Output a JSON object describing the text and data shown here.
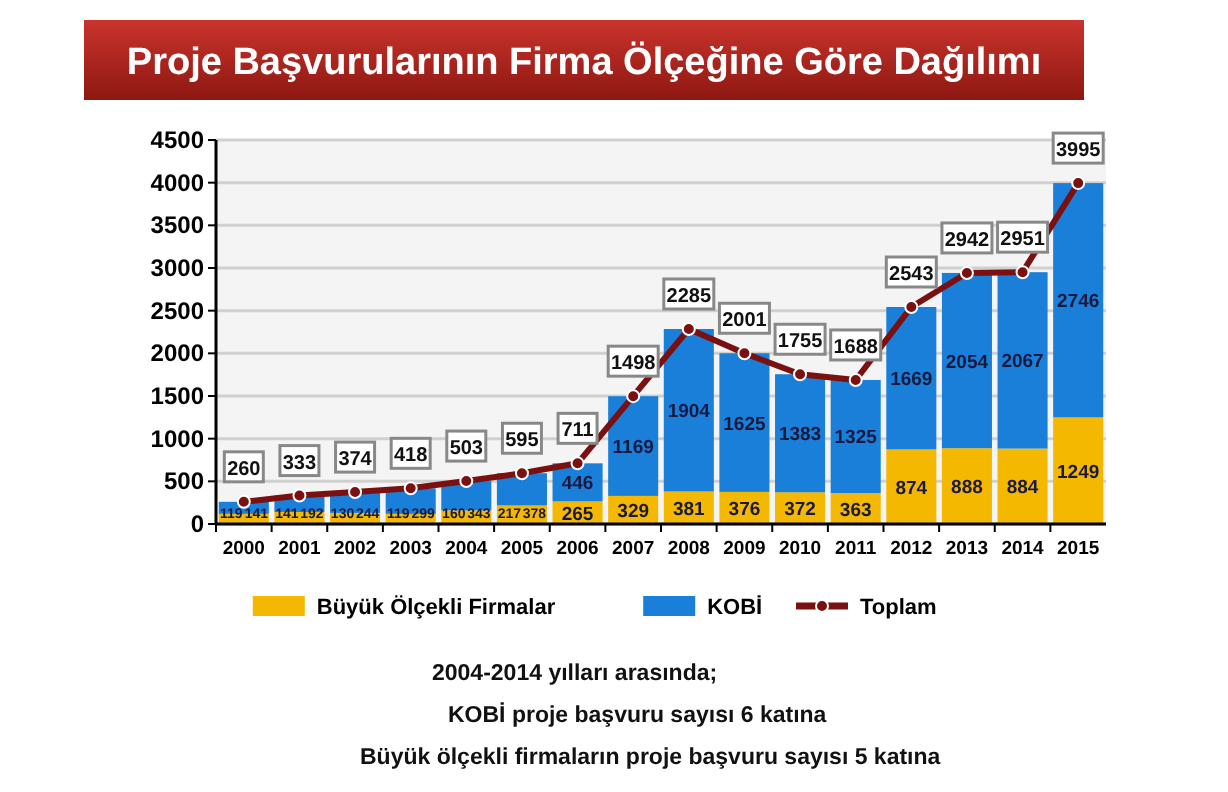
{
  "chart_data": {
    "type": "bar",
    "title": "Proje Başvurularının Firma Ölçeğine Göre Dağılımı",
    "categories": [
      "2000",
      "2001",
      "2002",
      "2003",
      "2004",
      "2005",
      "2006",
      "2007",
      "2008",
      "2009",
      "2010",
      "2011",
      "2012",
      "2013",
      "2014",
      "2015"
    ],
    "stacked": true,
    "series": [
      {
        "name": "Büyük Ölçekli Firmalar",
        "color": "#f5b800",
        "values": [
          119,
          141,
          130,
          119,
          160,
          217,
          265,
          329,
          381,
          376,
          372,
          363,
          874,
          888,
          884,
          1249
        ]
      },
      {
        "name": "KOBİ",
        "color": "#1a7fd8",
        "values": [
          141,
          192,
          244,
          299,
          343,
          378,
          446,
          1169,
          1904,
          1625,
          1383,
          1325,
          1669,
          2054,
          2067,
          2746
        ]
      },
      {
        "name": "Toplam",
        "type": "line",
        "color": "#7a1010",
        "marker": "circle",
        "values": [
          260,
          333,
          374,
          418,
          503,
          595,
          711,
          1498,
          2285,
          2001,
          1755,
          1688,
          2543,
          2942,
          2951,
          3995
        ]
      }
    ],
    "ylim": [
      0,
      4500
    ],
    "yticks": [
      0,
      500,
      1000,
      1500,
      2000,
      2500,
      3000,
      3500,
      4000,
      4500
    ],
    "grid": "y",
    "data_labels": true,
    "legend": "bottom",
    "annotations": [
      "2004-2014 yılları arasında;",
      "KOBİ proje başvuru  sayısı  6  katına",
      "Büyük ölçekli firmaların proje başvuru sayısı 5  katına"
    ]
  }
}
